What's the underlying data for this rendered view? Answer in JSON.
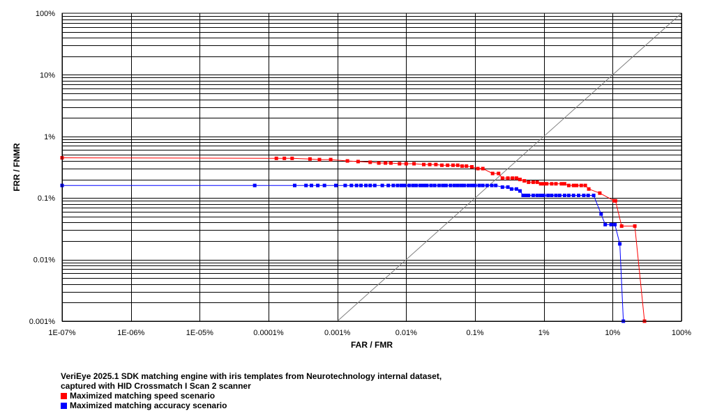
{
  "chart_data": {
    "type": "line",
    "xscale": "log",
    "yscale": "log",
    "xlabel": "FAR / FMR",
    "ylabel": "FRR / FNMR",
    "xlim": [
      1e-09,
      1
    ],
    "ylim": [
      1e-05,
      1
    ],
    "x_ticks": [
      {
        "v": 1e-09,
        "label": "1E-07%"
      },
      {
        "v": 1e-08,
        "label": "1E-06%"
      },
      {
        "v": 1e-07,
        "label": "1E-05%"
      },
      {
        "v": 1e-06,
        "label": "0.0001%"
      },
      {
        "v": 1e-05,
        "label": "0.001%"
      },
      {
        "v": 0.0001,
        "label": "0.01%"
      },
      {
        "v": 0.001,
        "label": "0.1%"
      },
      {
        "v": 0.01,
        "label": "1%"
      },
      {
        "v": 0.1,
        "label": "10%"
      },
      {
        "v": 1,
        "label": "100%"
      }
    ],
    "y_ticks": [
      {
        "v": 1e-05,
        "label": "0.001%"
      },
      {
        "v": 0.0001,
        "label": "0.01%"
      },
      {
        "v": 0.001,
        "label": "0.1%"
      },
      {
        "v": 0.01,
        "label": "1%"
      },
      {
        "v": 0.1,
        "label": "10%"
      },
      {
        "v": 1,
        "label": "100%"
      }
    ],
    "grid": true,
    "reference_line": {
      "from": [
        1e-05,
        1e-05
      ],
      "to": [
        1,
        1
      ],
      "color": "#808080"
    },
    "series": [
      {
        "name": "Maximized matching speed scenario",
        "color": "#ff0000",
        "points": [
          [
            1e-09,
            0.0045
          ],
          [
            1.3e-06,
            0.0044
          ],
          [
            1.7e-06,
            0.0044
          ],
          [
            2.2e-06,
            0.0044
          ],
          [
            4e-06,
            0.0043
          ],
          [
            5.5e-06,
            0.0042
          ],
          [
            8e-06,
            0.0042
          ],
          [
            1.4e-05,
            0.004
          ],
          [
            2e-05,
            0.0039
          ],
          [
            3e-05,
            0.0038
          ],
          [
            4e-05,
            0.0037
          ],
          [
            5e-05,
            0.0037
          ],
          [
            6e-05,
            0.0037
          ],
          [
            8e-05,
            0.0036
          ],
          [
            0.0001,
            0.0036
          ],
          [
            0.00013,
            0.0036
          ],
          [
            0.00018,
            0.0035
          ],
          [
            0.00022,
            0.0035
          ],
          [
            0.00027,
            0.0035
          ],
          [
            0.00033,
            0.0034
          ],
          [
            0.0004,
            0.0034
          ],
          [
            0.00048,
            0.0034
          ],
          [
            0.00056,
            0.0034
          ],
          [
            0.00065,
            0.0033
          ],
          [
            0.00075,
            0.0033
          ],
          [
            0.0009,
            0.0032
          ],
          [
            0.0011,
            0.003
          ],
          [
            0.0013,
            0.003
          ],
          [
            0.0018,
            0.0025
          ],
          [
            0.0022,
            0.0025
          ],
          [
            0.0025,
            0.0021
          ],
          [
            0.003,
            0.0021
          ],
          [
            0.0035,
            0.0021
          ],
          [
            0.004,
            0.0021
          ],
          [
            0.0045,
            0.002
          ],
          [
            0.0052,
            0.0019
          ],
          [
            0.006,
            0.0018
          ],
          [
            0.007,
            0.0018
          ],
          [
            0.008,
            0.0018
          ],
          [
            0.009,
            0.0017
          ],
          [
            0.01,
            0.0017
          ],
          [
            0.011,
            0.0017
          ],
          [
            0.013,
            0.0017
          ],
          [
            0.015,
            0.0017
          ],
          [
            0.018,
            0.0017
          ],
          [
            0.02,
            0.0017
          ],
          [
            0.023,
            0.0016
          ],
          [
            0.027,
            0.0016
          ],
          [
            0.03,
            0.0016
          ],
          [
            0.035,
            0.0016
          ],
          [
            0.04,
            0.0016
          ],
          [
            0.045,
            0.0014
          ],
          [
            0.065,
            0.0012
          ],
          [
            0.105,
            0.0009
          ],
          [
            0.11,
            0.0009
          ],
          [
            0.135,
            0.00035
          ],
          [
            0.21,
            0.00035
          ],
          [
            0.29,
            1e-05
          ]
        ]
      },
      {
        "name": "Maximized matching accuracy scenario",
        "color": "#0000ff",
        "points": [
          [
            1e-09,
            0.0016
          ],
          [
            6.3e-07,
            0.0016
          ],
          [
            2.4e-06,
            0.0016
          ],
          [
            3.5e-06,
            0.0016
          ],
          [
            4.2e-06,
            0.0016
          ],
          [
            5.2e-06,
            0.0016
          ],
          [
            6.5e-06,
            0.0016
          ],
          [
            9.5e-06,
            0.0016
          ],
          [
            1.3e-05,
            0.0016
          ],
          [
            1.6e-05,
            0.0016
          ],
          [
            1.9e-05,
            0.0016
          ],
          [
            2.2e-05,
            0.0016
          ],
          [
            2.6e-05,
            0.0016
          ],
          [
            3e-05,
            0.0016
          ],
          [
            3.5e-05,
            0.0016
          ],
          [
            4.5e-05,
            0.0016
          ],
          [
            5.5e-05,
            0.0016
          ],
          [
            6.5e-05,
            0.0016
          ],
          [
            7.5e-05,
            0.0016
          ],
          [
            8.5e-05,
            0.0016
          ],
          [
            9.5e-05,
            0.0016
          ],
          [
            0.00011,
            0.0016
          ],
          [
            0.000125,
            0.0016
          ],
          [
            0.00014,
            0.0016
          ],
          [
            0.00016,
            0.0016
          ],
          [
            0.00018,
            0.0016
          ],
          [
            0.0002,
            0.0016
          ],
          [
            0.00023,
            0.0016
          ],
          [
            0.00026,
            0.0016
          ],
          [
            0.0003,
            0.0016
          ],
          [
            0.00034,
            0.0016
          ],
          [
            0.00038,
            0.0016
          ],
          [
            0.00044,
            0.0016
          ],
          [
            0.0005,
            0.0016
          ],
          [
            0.00056,
            0.0016
          ],
          [
            0.00063,
            0.0016
          ],
          [
            0.0007,
            0.0016
          ],
          [
            0.0008,
            0.0016
          ],
          [
            0.0009,
            0.0016
          ],
          [
            0.001,
            0.0016
          ],
          [
            0.00115,
            0.0016
          ],
          [
            0.0013,
            0.0016
          ],
          [
            0.0015,
            0.0016
          ],
          [
            0.00175,
            0.0016
          ],
          [
            0.002,
            0.0016
          ],
          [
            0.0025,
            0.0015
          ],
          [
            0.003,
            0.0015
          ],
          [
            0.0034,
            0.0014
          ],
          [
            0.004,
            0.0014
          ],
          [
            0.0045,
            0.0013
          ],
          [
            0.005,
            0.0011
          ],
          [
            0.0055,
            0.0011
          ],
          [
            0.006,
            0.0011
          ],
          [
            0.007,
            0.0011
          ],
          [
            0.008,
            0.0011
          ],
          [
            0.009,
            0.0011
          ],
          [
            0.01,
            0.0011
          ],
          [
            0.0115,
            0.0011
          ],
          [
            0.013,
            0.0011
          ],
          [
            0.015,
            0.0011
          ],
          [
            0.017,
            0.0011
          ],
          [
            0.02,
            0.0011
          ],
          [
            0.023,
            0.0011
          ],
          [
            0.027,
            0.0011
          ],
          [
            0.032,
            0.0011
          ],
          [
            0.038,
            0.0011
          ],
          [
            0.044,
            0.0011
          ],
          [
            0.053,
            0.0011
          ],
          [
            0.068,
            0.00055
          ],
          [
            0.078,
            0.00037
          ],
          [
            0.095,
            0.00037
          ],
          [
            0.108,
            0.00037
          ],
          [
            0.127,
            0.00018
          ],
          [
            0.143,
            1e-05
          ]
        ]
      }
    ],
    "caption": [
      "VeriEye 2025.1 SDK matching engine with iris templates from Neurotechnology internal dataset,",
      "captured with HID Crossmatch I Scan 2 scanner"
    ],
    "legend_position": "bottom-left"
  }
}
